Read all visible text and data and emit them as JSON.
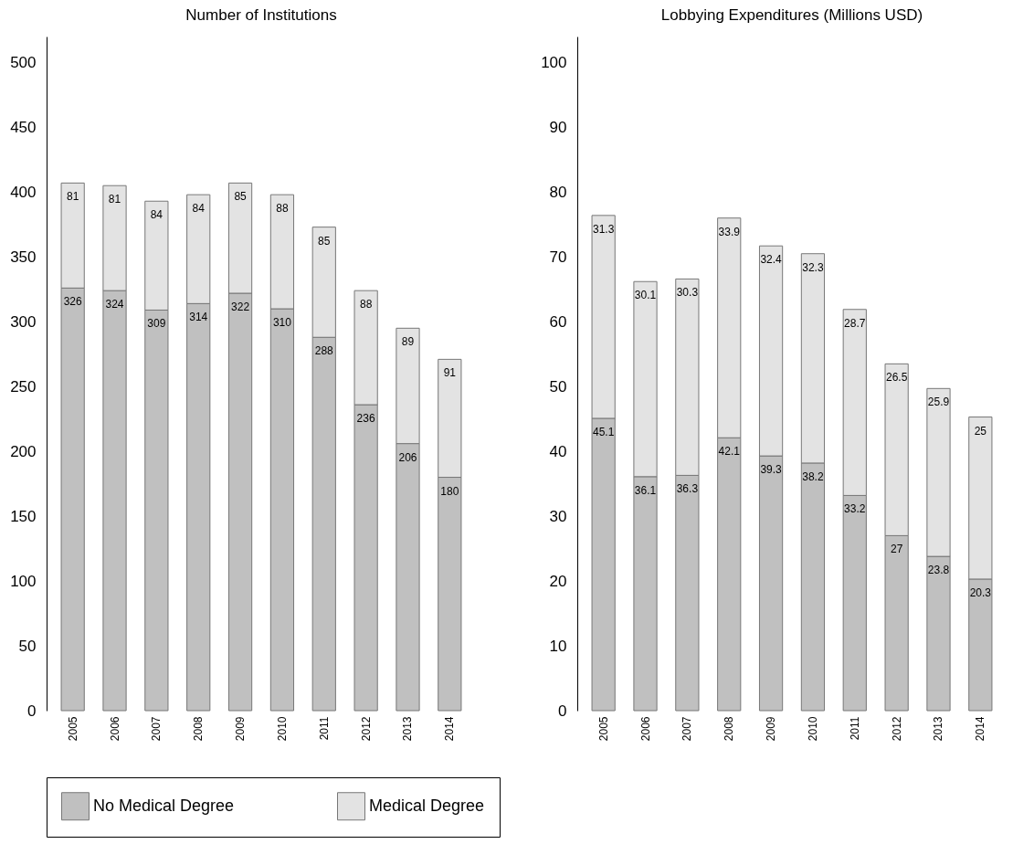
{
  "chart_data": [
    {
      "type": "bar",
      "title": "Number of Institutions",
      "stacked": true,
      "data_labels": true,
      "legend": "bottom",
      "grid": false,
      "categories": [
        "2005",
        "2006",
        "2007",
        "2008",
        "2009",
        "2010",
        "2011",
        "2012",
        "2013",
        "2014"
      ],
      "ylim": [
        0,
        520
      ],
      "yticks": [
        0,
        50,
        100,
        150,
        200,
        250,
        300,
        350,
        400,
        450,
        500
      ],
      "series": [
        {
          "name": "No Medical Degree",
          "color": "#c0c0c0",
          "values": [
            326,
            324,
            309,
            314,
            322,
            310,
            288,
            236,
            206,
            180
          ]
        },
        {
          "name": "Medical Degree",
          "color": "#e3e3e3",
          "values": [
            81,
            81,
            84,
            84,
            85,
            88,
            85,
            88,
            89,
            91
          ]
        }
      ]
    },
    {
      "type": "bar",
      "title": "Lobbying Expenditures (Millions USD)",
      "stacked": true,
      "data_labels": true,
      "legend": "bottom",
      "grid": false,
      "categories": [
        "2005",
        "2006",
        "2007",
        "2008",
        "2009",
        "2010",
        "2011",
        "2012",
        "2013",
        "2014"
      ],
      "ylim": [
        0,
        104
      ],
      "yticks": [
        0,
        10,
        20,
        30,
        40,
        50,
        60,
        70,
        80,
        90,
        100
      ],
      "series": [
        {
          "name": "No Medical Degree",
          "color": "#c0c0c0",
          "values": [
            45.1,
            36.1,
            36.3,
            42.1,
            39.3,
            38.2,
            33.2,
            27,
            23.8,
            20.3
          ]
        },
        {
          "name": "Medical Degree",
          "color": "#e3e3e3",
          "values": [
            31.3,
            30.1,
            30.3,
            33.9,
            32.4,
            32.3,
            28.7,
            26.5,
            25.9,
            25
          ]
        }
      ]
    }
  ]
}
